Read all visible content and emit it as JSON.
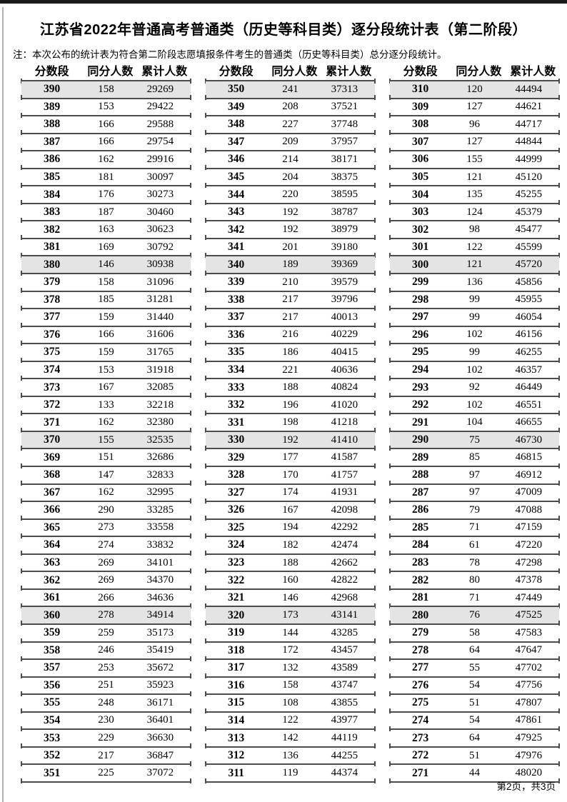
{
  "page": {
    "title": "江苏省2022年普通高考普通类（历史等科目类）逐分段统计表（第二阶段）",
    "note": "注：本次公布的统计表为符合第二阶段志愿填报条件考生的普通类（历史等科目类）总分逐分段统计。",
    "footer": "第2页，共3页",
    "columns": [
      "分数段",
      "同分人数",
      "累计人数"
    ],
    "highlight_color": "#e4e4e4",
    "border_color": "#4c4c4c"
  },
  "chart_data": {
    "type": "table",
    "title": "江苏省2022年普通高考普通类（历史等科目类）逐分段统计表（第二阶段）",
    "columns": [
      "分数段",
      "同分人数",
      "累计人数"
    ]
  },
  "tables": [
    {
      "rows": [
        [
          390,
          158,
          29269
        ],
        [
          389,
          153,
          29422
        ],
        [
          388,
          166,
          29588
        ],
        [
          387,
          166,
          29754
        ],
        [
          386,
          162,
          29916
        ],
        [
          385,
          181,
          30097
        ],
        [
          384,
          176,
          30273
        ],
        [
          383,
          187,
          30460
        ],
        [
          382,
          163,
          30623
        ],
        [
          381,
          169,
          30792
        ],
        [
          380,
          146,
          30938
        ],
        [
          379,
          158,
          31096
        ],
        [
          378,
          185,
          31281
        ],
        [
          377,
          159,
          31440
        ],
        [
          376,
          166,
          31606
        ],
        [
          375,
          159,
          31765
        ],
        [
          374,
          153,
          31918
        ],
        [
          373,
          167,
          32085
        ],
        [
          372,
          133,
          32218
        ],
        [
          371,
          162,
          32380
        ],
        [
          370,
          155,
          32535
        ],
        [
          369,
          151,
          32686
        ],
        [
          368,
          147,
          32833
        ],
        [
          367,
          162,
          32995
        ],
        [
          366,
          290,
          33285
        ],
        [
          365,
          273,
          33558
        ],
        [
          364,
          274,
          33832
        ],
        [
          363,
          269,
          34101
        ],
        [
          362,
          269,
          34370
        ],
        [
          361,
          266,
          34636
        ],
        [
          360,
          278,
          34914
        ],
        [
          359,
          259,
          35173
        ],
        [
          358,
          246,
          35419
        ],
        [
          357,
          253,
          35672
        ],
        [
          356,
          251,
          35923
        ],
        [
          355,
          248,
          36171
        ],
        [
          354,
          230,
          36401
        ],
        [
          353,
          229,
          36630
        ],
        [
          352,
          217,
          36847
        ],
        [
          351,
          225,
          37072
        ]
      ]
    },
    {
      "rows": [
        [
          350,
          241,
          37313
        ],
        [
          349,
          208,
          37521
        ],
        [
          348,
          227,
          37748
        ],
        [
          347,
          209,
          37957
        ],
        [
          346,
          214,
          38171
        ],
        [
          345,
          204,
          38375
        ],
        [
          344,
          220,
          38595
        ],
        [
          343,
          192,
          38787
        ],
        [
          342,
          192,
          38979
        ],
        [
          341,
          201,
          39180
        ],
        [
          340,
          189,
          39369
        ],
        [
          339,
          210,
          39579
        ],
        [
          338,
          217,
          39796
        ],
        [
          337,
          217,
          40013
        ],
        [
          336,
          216,
          40229
        ],
        [
          335,
          186,
          40415
        ],
        [
          334,
          221,
          40636
        ],
        [
          333,
          188,
          40824
        ],
        [
          332,
          196,
          41020
        ],
        [
          331,
          198,
          41218
        ],
        [
          330,
          192,
          41410
        ],
        [
          329,
          177,
          41587
        ],
        [
          328,
          170,
          41757
        ],
        [
          327,
          174,
          41931
        ],
        [
          326,
          167,
          42098
        ],
        [
          325,
          194,
          42292
        ],
        [
          324,
          182,
          42474
        ],
        [
          323,
          188,
          42662
        ],
        [
          322,
          160,
          42822
        ],
        [
          321,
          146,
          42968
        ],
        [
          320,
          173,
          43141
        ],
        [
          319,
          144,
          43285
        ],
        [
          318,
          172,
          43457
        ],
        [
          317,
          132,
          43589
        ],
        [
          316,
          158,
          43747
        ],
        [
          315,
          108,
          43855
        ],
        [
          314,
          122,
          43977
        ],
        [
          313,
          142,
          44119
        ],
        [
          312,
          136,
          44255
        ],
        [
          311,
          119,
          44374
        ]
      ]
    },
    {
      "rows": [
        [
          310,
          120,
          44494
        ],
        [
          309,
          127,
          44621
        ],
        [
          308,
          96,
          44717
        ],
        [
          307,
          127,
          44844
        ],
        [
          306,
          155,
          44999
        ],
        [
          305,
          121,
          45120
        ],
        [
          304,
          135,
          45255
        ],
        [
          303,
          124,
          45379
        ],
        [
          302,
          98,
          45477
        ],
        [
          301,
          122,
          45599
        ],
        [
          300,
          121,
          45720
        ],
        [
          299,
          136,
          45856
        ],
        [
          298,
          99,
          45955
        ],
        [
          297,
          99,
          46054
        ],
        [
          296,
          102,
          46156
        ],
        [
          295,
          99,
          46255
        ],
        [
          294,
          102,
          46357
        ],
        [
          293,
          92,
          46449
        ],
        [
          292,
          102,
          46551
        ],
        [
          291,
          104,
          46655
        ],
        [
          290,
          75,
          46730
        ],
        [
          289,
          85,
          46815
        ],
        [
          288,
          97,
          46912
        ],
        [
          287,
          97,
          47009
        ],
        [
          286,
          79,
          47088
        ],
        [
          285,
          71,
          47159
        ],
        [
          284,
          61,
          47220
        ],
        [
          283,
          78,
          47298
        ],
        [
          282,
          80,
          47378
        ],
        [
          281,
          71,
          47449
        ],
        [
          280,
          76,
          47525
        ],
        [
          279,
          58,
          47583
        ],
        [
          278,
          64,
          47647
        ],
        [
          277,
          55,
          47702
        ],
        [
          276,
          54,
          47756
        ],
        [
          275,
          51,
          47807
        ],
        [
          274,
          54,
          47861
        ],
        [
          273,
          64,
          47925
        ],
        [
          272,
          51,
          47976
        ],
        [
          271,
          44,
          48020
        ]
      ]
    }
  ]
}
